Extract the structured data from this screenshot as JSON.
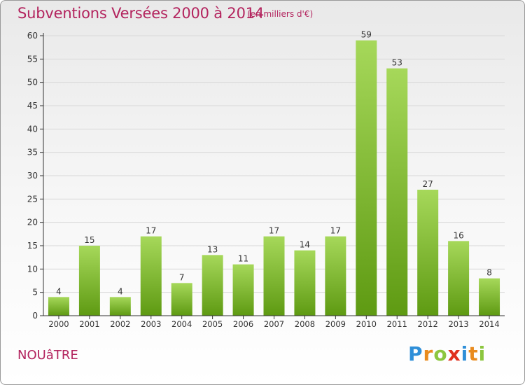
{
  "header": {
    "title": "Subventions Versées 2000 à 2014",
    "subtitle": "(en milliers d'€)"
  },
  "footer": {
    "place": "NOUâTRE",
    "logo_letters": [
      {
        "ch": "P",
        "color": "#2f8fd8"
      },
      {
        "ch": "r",
        "color": "#e98b1e"
      },
      {
        "ch": "o",
        "color": "#8cc63f"
      },
      {
        "ch": "x",
        "color": "#e0301e"
      },
      {
        "ch": "i",
        "color": "#2f8fd8"
      },
      {
        "ch": "t",
        "color": "#e98b1e"
      },
      {
        "ch": "i",
        "color": "#8cc63f"
      }
    ]
  },
  "colors": {
    "title": "#b3245e",
    "bar_top": "#a6d85a",
    "bar_bottom": "#5e9a12",
    "grid": "#d8d8d8",
    "axis": "#333333"
  },
  "chart_data": {
    "type": "bar",
    "categories": [
      "2000",
      "2001",
      "2002",
      "2003",
      "2004",
      "2005",
      "2006",
      "2007",
      "2008",
      "2009",
      "2010",
      "2011",
      "2012",
      "2013",
      "2014"
    ],
    "values": [
      4,
      15,
      4,
      17,
      7,
      13,
      11,
      17,
      14,
      17,
      59,
      53,
      27,
      16,
      8
    ],
    "ylim": [
      0,
      60
    ],
    "yticks": [
      0,
      5,
      10,
      15,
      20,
      25,
      30,
      35,
      40,
      45,
      50,
      55,
      60
    ],
    "grid": true,
    "data_labels": true
  }
}
